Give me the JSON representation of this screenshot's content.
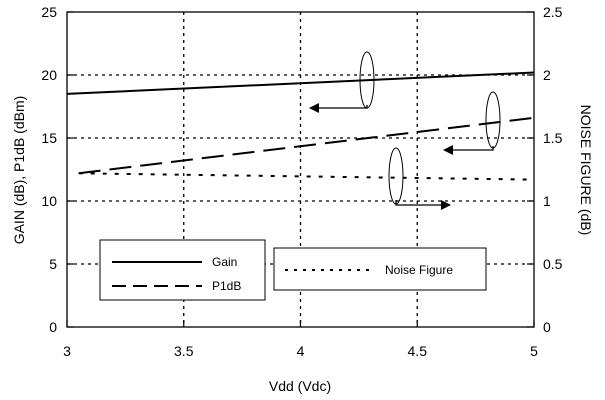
{
  "chart_data": {
    "type": "line",
    "xlabel": "Vdd (Vdc)",
    "ylabel": "GAIN (dB), P1dB (dBm)",
    "y2label": "NOISE FIGURE (dB)",
    "xlim": [
      3,
      5
    ],
    "ylim": [
      0,
      25
    ],
    "y2lim": [
      0,
      2.5
    ],
    "x_ticks": [
      "3",
      "3.5",
      "4",
      "4.5",
      "5"
    ],
    "y_ticks": [
      "0",
      "5",
      "10",
      "15",
      "20",
      "25"
    ],
    "y2_ticks": [
      "0",
      "0.5",
      "1",
      "1.5",
      "2",
      "2.5"
    ],
    "grid": true,
    "legend": [
      {
        "label": "Gain",
        "series": "gain"
      },
      {
        "label": "P1dB",
        "series": "p1db"
      },
      {
        "label": "Noise Figure",
        "series": "nf"
      }
    ],
    "series": [
      {
        "name": "Gain",
        "key": "gain",
        "axis": "left",
        "style": "solid",
        "x": [
          3,
          5
        ],
        "values": [
          18.5,
          20.2
        ]
      },
      {
        "name": "P1dB",
        "key": "p1db",
        "axis": "left",
        "style": "dashed",
        "x": [
          3.05,
          5
        ],
        "values": [
          12.2,
          16.6
        ]
      },
      {
        "name": "Noise Figure",
        "key": "nf",
        "axis": "right",
        "style": "dotted",
        "x": [
          3.05,
          5
        ],
        "values": [
          1.22,
          1.17
        ]
      }
    ]
  }
}
